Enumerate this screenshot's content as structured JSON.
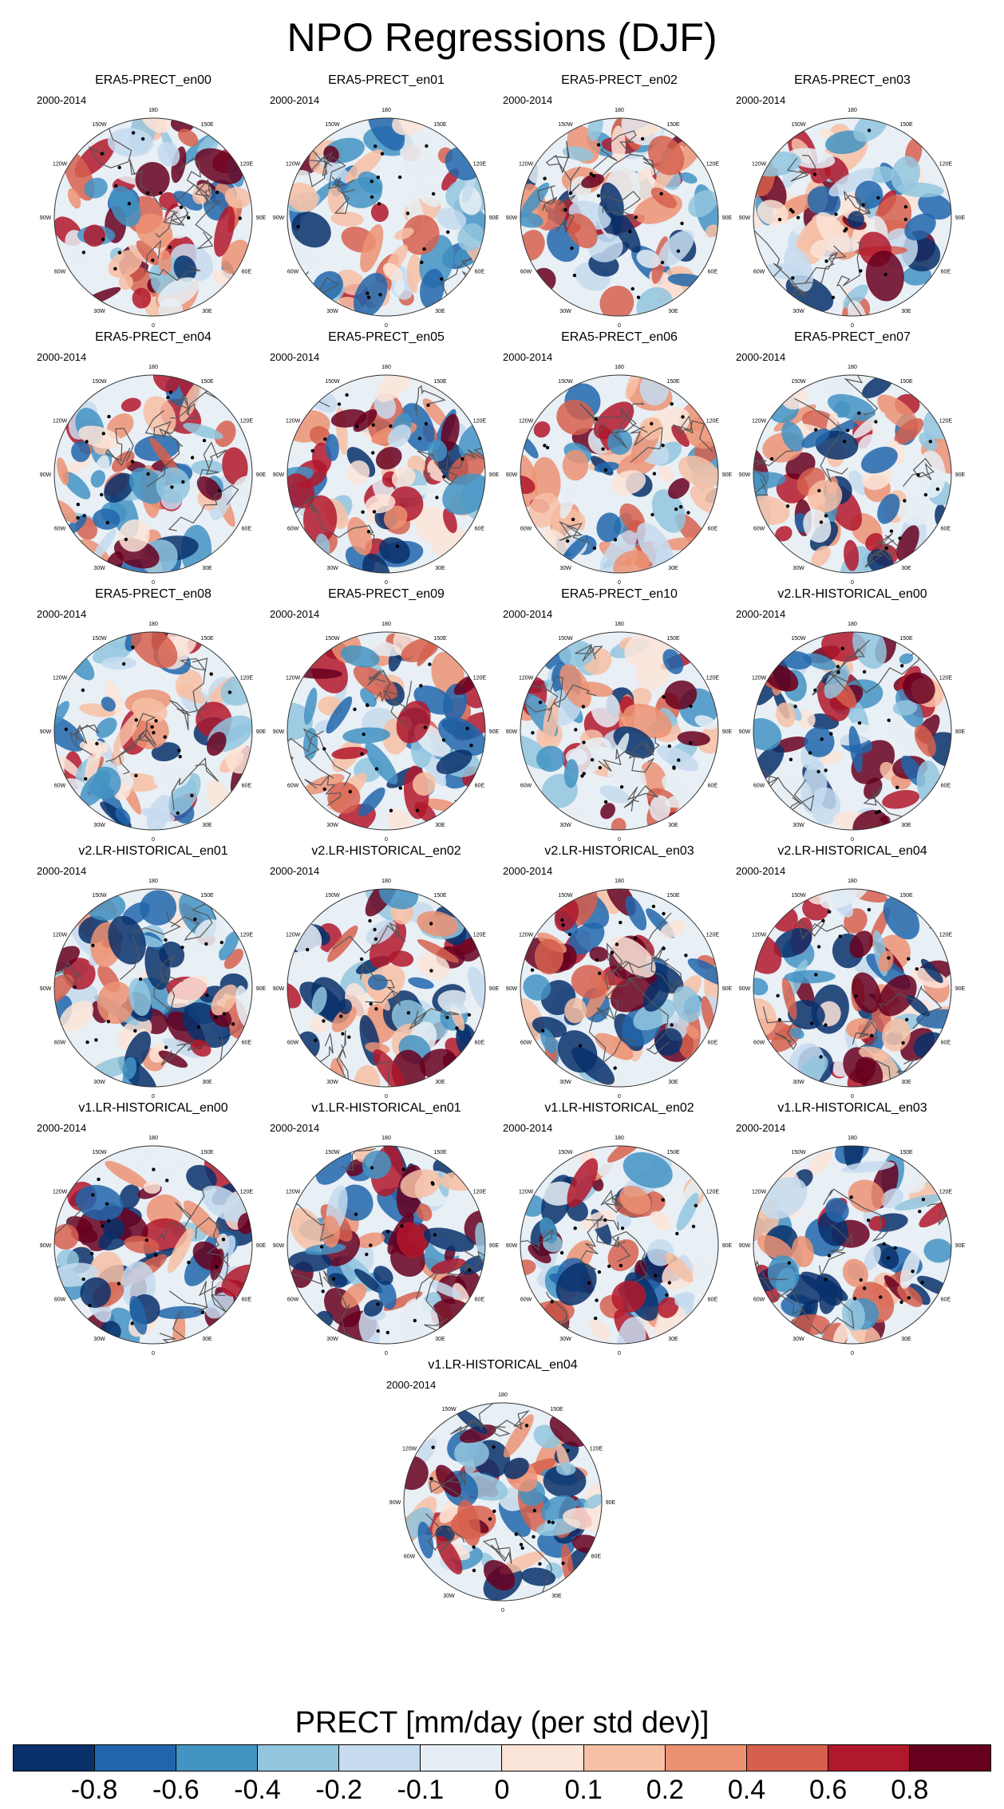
{
  "figure": {
    "title": "NPO Regressions (DJF)",
    "period": "2000-2014"
  },
  "chart_data": {
    "type": "heatmap",
    "title": "NPO Regressions (DJF)",
    "projection": "north-polar-stereographic",
    "variable": "PRECT",
    "units_label": "PRECT [mm/day (per std dev)]",
    "period": "2000-2014",
    "panels": [
      {
        "title": "ERA5-PRECT_en00",
        "group": "ERA5"
      },
      {
        "title": "ERA5-PRECT_en01",
        "group": "ERA5"
      },
      {
        "title": "ERA5-PRECT_en02",
        "group": "ERA5"
      },
      {
        "title": "ERA5-PRECT_en03",
        "group": "ERA5"
      },
      {
        "title": "ERA5-PRECT_en04",
        "group": "ERA5"
      },
      {
        "title": "ERA5-PRECT_en05",
        "group": "ERA5"
      },
      {
        "title": "ERA5-PRECT_en06",
        "group": "ERA5"
      },
      {
        "title": "ERA5-PRECT_en07",
        "group": "ERA5"
      },
      {
        "title": "ERA5-PRECT_en08",
        "group": "ERA5"
      },
      {
        "title": "ERA5-PRECT_en09",
        "group": "ERA5"
      },
      {
        "title": "ERA5-PRECT_en10",
        "group": "ERA5"
      },
      {
        "title": "v2.LR-HISTORICAL_en00",
        "group": "v2"
      },
      {
        "title": "v2.LR-HISTORICAL_en01",
        "group": "v2"
      },
      {
        "title": "v2.LR-HISTORICAL_en02",
        "group": "v2"
      },
      {
        "title": "v2.LR-HISTORICAL_en03",
        "group": "v2"
      },
      {
        "title": "v2.LR-HISTORICAL_en04",
        "group": "v2"
      },
      {
        "title": "v1.LR-HISTORICAL_en00",
        "group": "v1"
      },
      {
        "title": "v1.LR-HISTORICAL_en01",
        "group": "v1"
      },
      {
        "title": "v1.LR-HISTORICAL_en02",
        "group": "v1"
      },
      {
        "title": "v1.LR-HISTORICAL_en03",
        "group": "v1"
      },
      {
        "title": "v1.LR-HISTORICAL_en04",
        "group": "v1"
      }
    ],
    "longitude_labels": [
      "180",
      "150E",
      "120E",
      "90E",
      "60E",
      "30E",
      "0",
      "30W",
      "60W",
      "90W",
      "120W",
      "150W"
    ],
    "colorbar": {
      "levels": [
        "-0.8",
        "-0.6",
        "-0.4",
        "-0.2",
        "-0.1",
        "0",
        "0.1",
        "0.2",
        "0.4",
        "0.6",
        "0.8"
      ],
      "colors": [
        "#08306b",
        "#2166ac",
        "#4393c3",
        "#92c5de",
        "#c6dbef",
        "#e6eef5",
        "#fbe4d8",
        "#f7c0a4",
        "#ec9273",
        "#d6604d",
        "#b2182b",
        "#67001f"
      ]
    }
  }
}
